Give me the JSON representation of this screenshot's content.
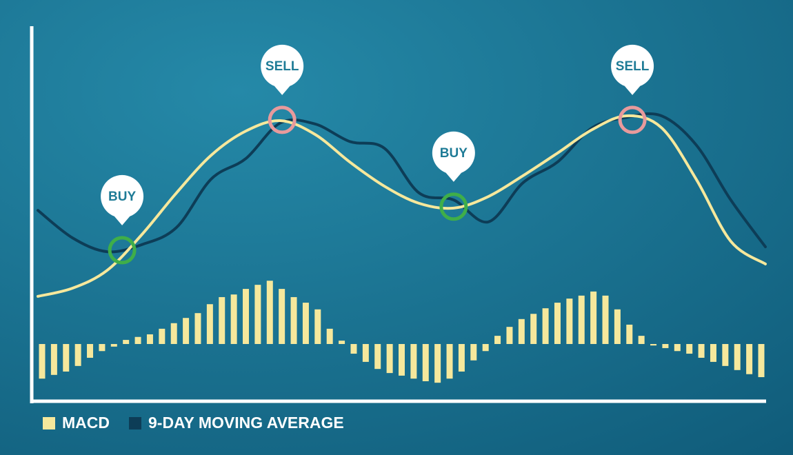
{
  "chart_data": {
    "type": "line",
    "xlim": [
      0,
      21
    ],
    "ylim": [
      0,
      100
    ],
    "y2lim": [
      -15,
      85
    ],
    "series": [
      {
        "name": "MACD",
        "color": "#f6e89c",
        "values": [
          27.8,
          30,
          34.8,
          44.4,
          55.6,
          65.7,
          72.2,
          75,
          71.3,
          63.9,
          57.4,
          52.8,
          51.5,
          54.6,
          60.2,
          66.3,
          72.6,
          76.3,
          73.1,
          59.3,
          42.6,
          36.5
        ]
      },
      {
        "name": "9-DAY MOVING AVERAGE",
        "color": "#0d3d57",
        "values": [
          50.9,
          43.5,
          39.8,
          41.7,
          46.3,
          59.3,
          64.8,
          74.4,
          74.1,
          69.4,
          67.6,
          55.6,
          53.7,
          47.8,
          58.3,
          63.9,
          73.1,
          75.9,
          76.3,
          68.5,
          53.7,
          41.1
        ]
      }
    ],
    "histogram": {
      "color": "#f6e89c",
      "axis": "y2",
      "values": [
        -9.3,
        -8.3,
        -7.4,
        -5.9,
        -3.7,
        -1.9,
        -0.7,
        1.1,
        1.9,
        2.6,
        4.1,
        5.6,
        7.0,
        8.3,
        10.7,
        12.6,
        13.3,
        14.8,
        15.9,
        17.0,
        14.8,
        12.6,
        11.1,
        9.3,
        4.1,
        0.9,
        -2.6,
        -4.8,
        -6.7,
        -7.8,
        -8.5,
        -9.3,
        -10,
        -10.4,
        -9.3,
        -7.4,
        -4.4,
        -1.9,
        2.2,
        4.6,
        6.7,
        8.1,
        9.6,
        11.1,
        12.2,
        13,
        14.1,
        13,
        9.3,
        5.2,
        2.2,
        -0.4,
        -1.1,
        -1.9,
        -2.6,
        -3.7,
        -4.8,
        -5.9,
        -7,
        -8.1,
        -8.9
      ]
    },
    "annotations": [
      {
        "label": "BUY",
        "x": 2.43,
        "y": 40.2,
        "color": "#3fae49"
      },
      {
        "label": "SELL",
        "x": 7.05,
        "y": 75.2,
        "color": "#e89a9c"
      },
      {
        "label": "BUY",
        "x": 12.0,
        "y": 51.9,
        "color": "#3fae49"
      },
      {
        "label": "SELL",
        "x": 17.16,
        "y": 75.2,
        "color": "#e89a9c"
      }
    ]
  }
}
